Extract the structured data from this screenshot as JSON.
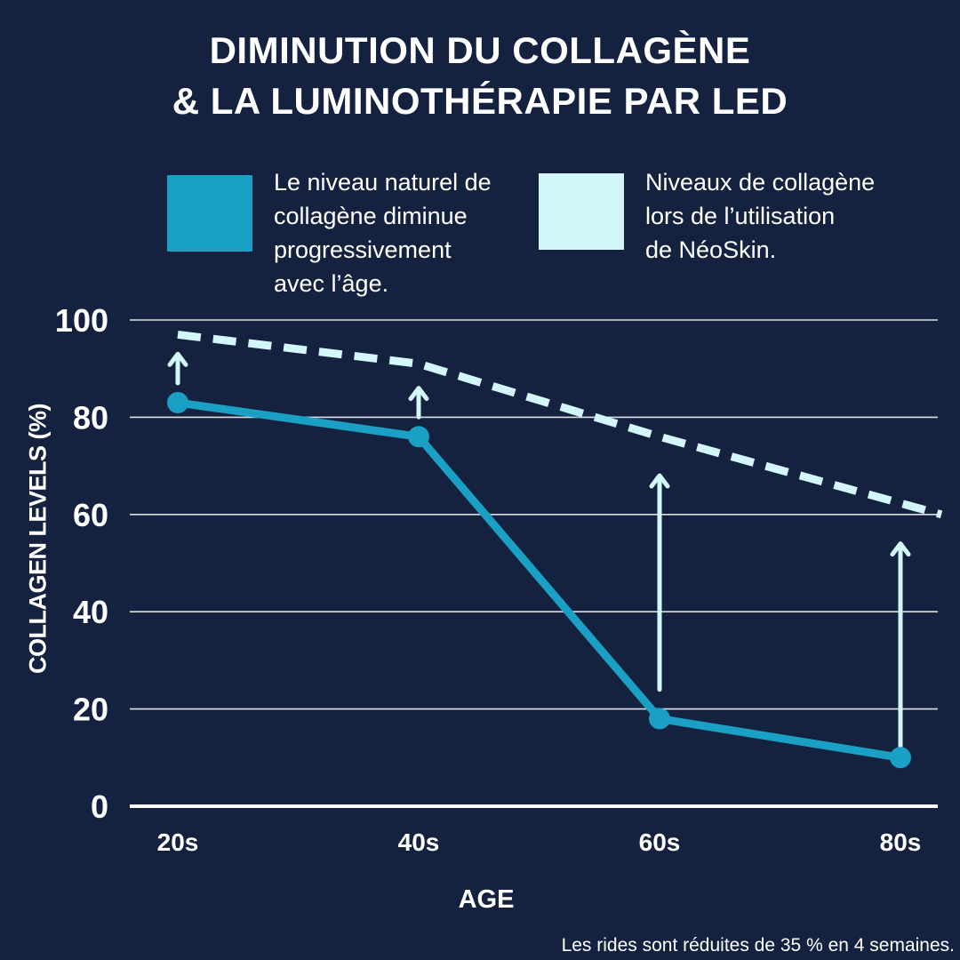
{
  "title": {
    "line1": "DIMINUTION DU COLLAGÈNE",
    "line2": "& LA LUMINOTHÉRAPIE PAR LED"
  },
  "legend": [
    {
      "color": "#1aa0c4",
      "lines": [
        "Le niveau naturel de",
        "collagène diminue",
        "progressivement",
        "avec l’âge."
      ]
    },
    {
      "color": "#d3f6fb",
      "lines": [
        "Niveaux de collagène",
        "lors de l’utilisation",
        "de NéoSkin."
      ]
    }
  ],
  "footnote": "Les rides sont réduites de 35 % en 4 semaines.",
  "colors": {
    "background": "#15223f",
    "natural": "#1aa0c4",
    "neoskin": "#d3f6fb",
    "gridline": "#ffffff"
  },
  "chart_data": {
    "type": "line",
    "categories": [
      "20s",
      "40s",
      "60s",
      "80s"
    ],
    "xlabel": "AGE",
    "ylabel": "COLLAGEN LEVELS (%)",
    "ylim": [
      0,
      100
    ],
    "yticks": [
      0,
      20,
      40,
      60,
      80,
      100
    ],
    "grid": true,
    "series": [
      {
        "style": "solid",
        "markers": true,
        "color": "#1aa0c4",
        "values": [
          83,
          76,
          18,
          10
        ]
      },
      {
        "style": "dashed",
        "markers": false,
        "color": "#d3f6fb",
        "x": [
          0,
          1,
          2,
          3.17
        ],
        "values": [
          97,
          91,
          76,
          60
        ]
      }
    ],
    "annotations": "upward arrows at each age showing increase from natural level to NéoSkin level"
  }
}
